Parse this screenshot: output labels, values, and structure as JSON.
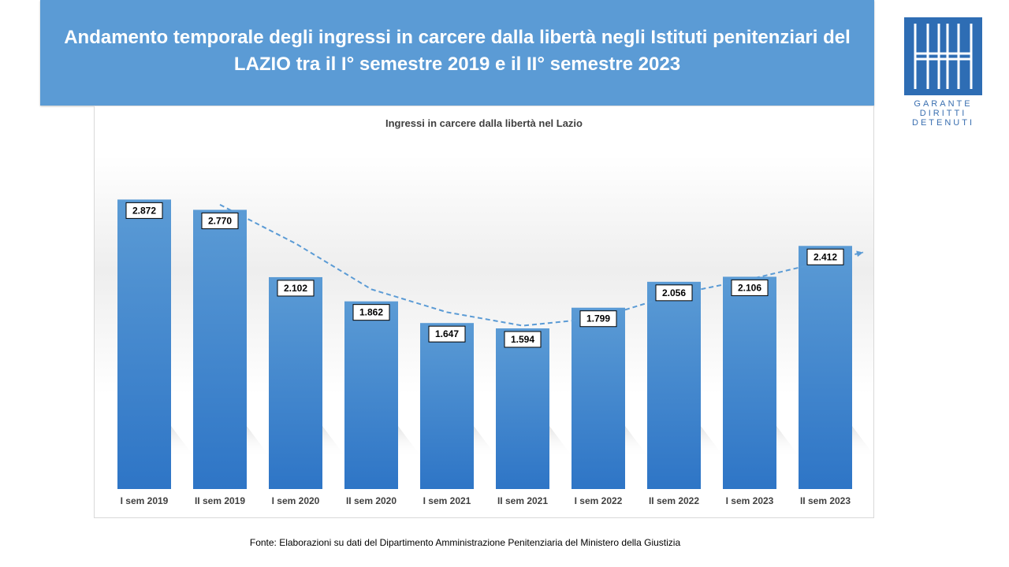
{
  "header": {
    "title": "Andamento temporale degli ingressi in carcere dalla libertà negli Istituti penitenziari del LAZIO tra il I° semestre 2019 e il II° semestre 2023"
  },
  "logo": {
    "lines": [
      "GARANTE",
      "DIRITTI",
      "DETENUTI"
    ]
  },
  "colors": {
    "banner": "#5b9bd5",
    "bar_top": "#5b9bd5",
    "bar_bottom": "#2e75c6",
    "trend": "#5b9bd5"
  },
  "chart_data": {
    "type": "bar",
    "title": "Ingressi in carcere dalla libertà nel Lazio",
    "categories": [
      "I sem 2019",
      "II sem 2019",
      "I sem 2020",
      "II sem 2020",
      "I sem 2021",
      "II sem 2021",
      "I sem 2022",
      "II sem 2022",
      "I sem 2023",
      "II sem 2023"
    ],
    "values": [
      2872,
      2770,
      2102,
      1862,
      1647,
      1594,
      1799,
      2056,
      2106,
      2412
    ],
    "value_labels": [
      "2.872",
      "2.770",
      "2.102",
      "1.862",
      "1.647",
      "1.594",
      "1.799",
      "2.056",
      "2.106",
      "2.412"
    ],
    "trendline": {
      "type": "moving-average",
      "style": "dashed"
    },
    "ylim": [
      0,
      3000
    ],
    "grid": false,
    "xlabel": "",
    "ylabel": ""
  },
  "footer": {
    "source": "Fonte:  Elaborazioni su dati del Dipartimento  Amministrazione  Penitenziaria del Ministero della Giustizia"
  }
}
